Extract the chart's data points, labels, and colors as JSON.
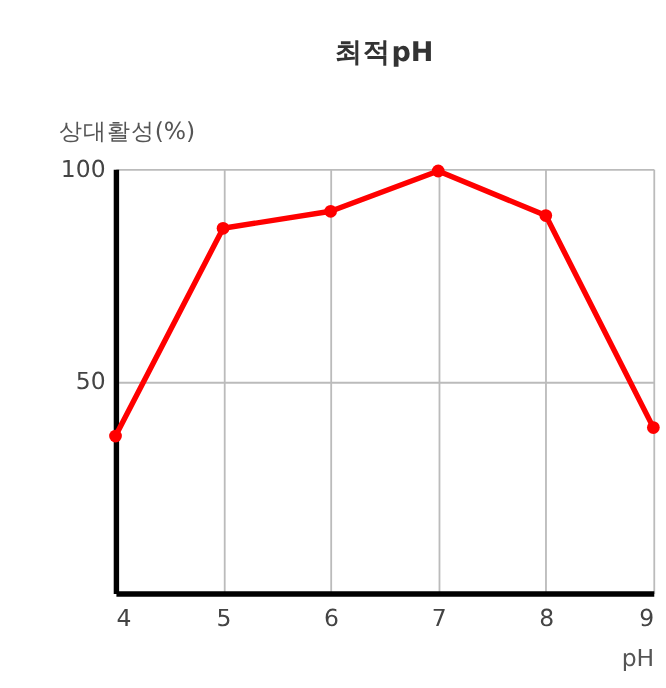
{
  "chart_data": {
    "type": "line",
    "title": "최적pH",
    "ylabel": "상대활성(%)",
    "xlabel": "pH",
    "x": [
      4,
      5,
      6,
      7,
      8,
      9
    ],
    "series": [
      {
        "color": "#ff0000",
        "values": [
          37,
          86,
          90,
          99.5,
          89,
          39
        ]
      }
    ],
    "xlim": [
      4,
      9
    ],
    "xticks": [
      4,
      5,
      6,
      7,
      8,
      9
    ],
    "ylim": [
      0,
      100
    ],
    "yticks": [
      50,
      100
    ],
    "grid": true,
    "marker": "circle",
    "line_style": "solid"
  }
}
